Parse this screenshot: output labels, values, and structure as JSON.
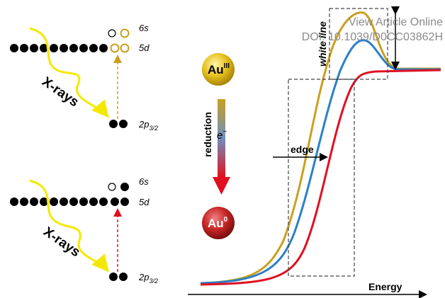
{
  "watermark": {
    "line1": "View Article Online",
    "line2": "DOI: 10.1039/D0CC03862H"
  },
  "top_panel": {
    "orbital_6s": "6s",
    "orbital_5d": "5d",
    "orbital_2p": {
      "base": "2p",
      "sub": "3/2"
    },
    "xrays": "X-rays"
  },
  "bottom_panel": {
    "orbital_6s": "6s",
    "orbital_5d": "5d",
    "orbital_2p": {
      "base": "2p",
      "sub": "3/2"
    },
    "xrays": "X-rays"
  },
  "middle": {
    "au3": {
      "base": "Au",
      "sup": "III"
    },
    "reduction": "reduction",
    "electron": {
      "base": "e",
      "sup": "−"
    },
    "au0": {
      "base": "Au",
      "sup": "0"
    }
  },
  "spectrum": {
    "edge": "edge",
    "white_line": "white line",
    "energy": "Energy"
  }
}
